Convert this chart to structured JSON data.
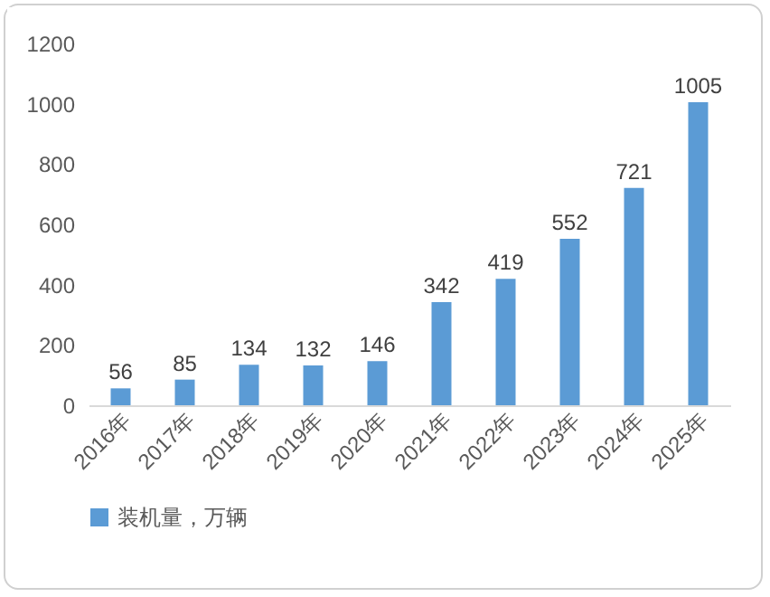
{
  "chart_data": {
    "type": "bar",
    "categories": [
      "2016年",
      "2017年",
      "2018年",
      "2019年",
      "2020年",
      "2021年",
      "2022年",
      "2023年",
      "2024年",
      "2025年"
    ],
    "series": [
      {
        "name": "装机量，万辆",
        "color": "#5b9bd5",
        "values": [
          56,
          85,
          134,
          132,
          146,
          342,
          419,
          552,
          721,
          1005
        ]
      }
    ],
    "ylim": [
      0,
      1200
    ],
    "yticks": [
      0,
      200,
      400,
      600,
      800,
      1000,
      1200
    ],
    "data_labels": true,
    "legend": "bottom"
  }
}
